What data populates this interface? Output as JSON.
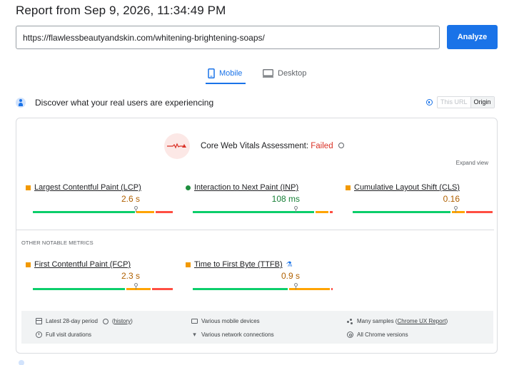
{
  "report": {
    "title": "Report from Sep 9, 2026, 11:34:49 PM"
  },
  "search": {
    "url": "https://flawlessbeautyandskin.com/whitening-brightening-soaps/",
    "analyze_label": "Analyze"
  },
  "tabs": [
    {
      "label": "Mobile",
      "icon": "smartphone-icon",
      "active": true
    },
    {
      "label": "Desktop",
      "icon": "monitor-icon",
      "active": false
    }
  ],
  "field_data": {
    "heading": "Discover what your real users are experiencing",
    "toggle": {
      "this_url": "This URL",
      "origin": "Origin",
      "selected": "Origin"
    }
  },
  "assessment": {
    "label": "Core Web Vitals Assessment:",
    "result": "Failed",
    "expand": "Expand view"
  },
  "core_metrics": [
    {
      "name": "Largest Contentful Paint (LCP)",
      "value": "2.6 s",
      "status": "needs-improvement",
      "distribution": {
        "good": 0.74,
        "needs_improvement": 0.14,
        "poor": 0.12
      },
      "marker": 0.74
    },
    {
      "name": "Interaction to Next Paint (INP)",
      "value": "108 ms",
      "status": "good",
      "distribution": {
        "good": 0.88,
        "needs_improvement": 0.1,
        "poor": 0.02
      },
      "marker": 0.74
    },
    {
      "name": "Cumulative Layout Shift (CLS)",
      "value": "0.16",
      "status": "needs-improvement",
      "distribution": {
        "good": 0.71,
        "needs_improvement": 0.1,
        "poor": 0.19
      },
      "marker": 0.74
    }
  ],
  "other": {
    "heading": "OTHER NOTABLE METRICS",
    "metrics": [
      {
        "name": "First Contentful Paint (FCP)",
        "value": "2.3 s",
        "status": "needs-improvement",
        "distribution": {
          "good": 0.67,
          "needs_improvement": 0.18,
          "poor": 0.15
        },
        "marker": 0.74
      },
      {
        "name": "Time to First Byte (TTFB)",
        "value": "0.9 s",
        "status": "needs-improvement",
        "flag": "experimental-flask-icon",
        "distribution": {
          "good": 0.69,
          "needs_improvement": 0.3,
          "poor": 0.01
        },
        "marker": 0.74
      }
    ]
  },
  "footer": {
    "period": "Latest 28-day period",
    "history": "history",
    "durations": "Full visit durations",
    "devices": "Various mobile devices",
    "network": "Various network connections",
    "samples_prefix": "Many samples (",
    "samples_link": "Chrome UX Report",
    "samples_suffix": ")",
    "versions": "All Chrome versions"
  },
  "colors": {
    "accent": "#1a73e8",
    "good": "#0cce6b",
    "average": "#ffa400",
    "poor": "#ff4e42",
    "failed": "#d93025"
  }
}
